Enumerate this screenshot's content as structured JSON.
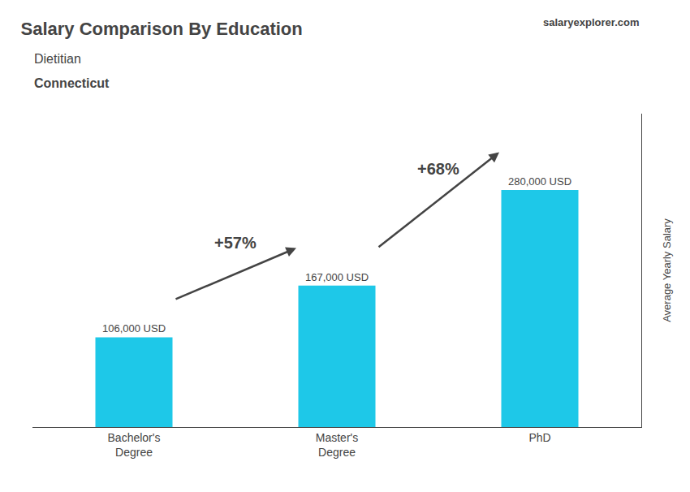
{
  "chart_data": {
    "type": "bar",
    "title": "Salary Comparison By Education",
    "subtitle": [
      "Dietitian",
      "Connecticut"
    ],
    "source": "salaryexplorer.com",
    "ylabel": "Average Yearly Salary",
    "categories": [
      "Bachelor's\nDegree",
      "Master's\nDegree",
      "PhD"
    ],
    "values": [
      106000,
      167000,
      280000
    ],
    "value_labels": [
      "106,000 USD",
      "167,000 USD",
      "280,000 USD"
    ],
    "data_labels": true,
    "color": "#1EC8E8",
    "annotations": [
      "+57%",
      "+68%"
    ],
    "ylim": [
      0,
      370000
    ],
    "tick_labels": "x",
    "grid": false
  }
}
